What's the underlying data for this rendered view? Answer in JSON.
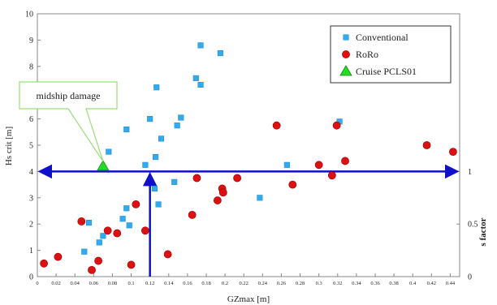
{
  "chart_data": {
    "type": "scatter",
    "xlabel": "GZmax [m]",
    "ylabel": "Hs crit [m]",
    "y2label": "s factor",
    "xlim": [
      0,
      0.45
    ],
    "ylim": [
      0,
      10
    ],
    "x_ticks": [
      "0",
      "0.02",
      "0.04",
      "0.06",
      "0.08",
      "0.1",
      "0.12",
      "0.14",
      "0.16",
      "0.18",
      "0.2",
      "0.22",
      "0.24",
      "0.26",
      "0.28",
      "0.3",
      "0.32",
      "0.34",
      "0.36",
      "0.38",
      "0.4",
      "0.42",
      "0.44"
    ],
    "y_ticks": [
      "0",
      "1",
      "2",
      "3",
      "4",
      "5",
      "6",
      "7",
      "8",
      "9",
      "10"
    ],
    "y2_ticks": [
      {
        "label": "0",
        "hs": 0
      },
      {
        "label": "0.5",
        "hs": 2
      },
      {
        "label": "1",
        "hs": 4
      }
    ],
    "grid": false,
    "legend_position": "top-right",
    "series": [
      {
        "name": "Conventional",
        "marker": "square",
        "color": "#33aaee",
        "points": [
          {
            "x": 0.05,
            "y": 0.95
          },
          {
            "x": 0.055,
            "y": 2.05
          },
          {
            "x": 0.066,
            "y": 1.3
          },
          {
            "x": 0.07,
            "y": 1.55
          },
          {
            "x": 0.076,
            "y": 4.75
          },
          {
            "x": 0.091,
            "y": 2.2
          },
          {
            "x": 0.095,
            "y": 2.6
          },
          {
            "x": 0.098,
            "y": 1.95
          },
          {
            "x": 0.095,
            "y": 5.6
          },
          {
            "x": 0.115,
            "y": 4.25
          },
          {
            "x": 0.12,
            "y": 6.0
          },
          {
            "x": 0.125,
            "y": 3.35
          },
          {
            "x": 0.126,
            "y": 4.55
          },
          {
            "x": 0.127,
            "y": 7.2
          },
          {
            "x": 0.129,
            "y": 2.75
          },
          {
            "x": 0.132,
            "y": 5.25
          },
          {
            "x": 0.146,
            "y": 3.6
          },
          {
            "x": 0.149,
            "y": 5.75
          },
          {
            "x": 0.153,
            "y": 6.05
          },
          {
            "x": 0.169,
            "y": 7.55
          },
          {
            "x": 0.174,
            "y": 7.3
          },
          {
            "x": 0.174,
            "y": 8.8
          },
          {
            "x": 0.195,
            "y": 8.5
          },
          {
            "x": 0.237,
            "y": 3.0
          },
          {
            "x": 0.266,
            "y": 4.25
          },
          {
            "x": 0.322,
            "y": 5.9
          }
        ]
      },
      {
        "name": "RoRo",
        "marker": "circle",
        "color": "#dd1111",
        "points": [
          {
            "x": 0.007,
            "y": 0.5
          },
          {
            "x": 0.022,
            "y": 0.75
          },
          {
            "x": 0.047,
            "y": 2.1
          },
          {
            "x": 0.058,
            "y": 0.25
          },
          {
            "x": 0.065,
            "y": 0.6
          },
          {
            "x": 0.075,
            "y": 1.75
          },
          {
            "x": 0.085,
            "y": 1.65
          },
          {
            "x": 0.1,
            "y": 0.45
          },
          {
            "x": 0.105,
            "y": 2.75
          },
          {
            "x": 0.115,
            "y": 1.75
          },
          {
            "x": 0.139,
            "y": 0.85
          },
          {
            "x": 0.165,
            "y": 2.35
          },
          {
            "x": 0.17,
            "y": 3.75
          },
          {
            "x": 0.192,
            "y": 2.9
          },
          {
            "x": 0.197,
            "y": 3.35
          },
          {
            "x": 0.198,
            "y": 3.2
          },
          {
            "x": 0.213,
            "y": 3.75
          },
          {
            "x": 0.255,
            "y": 5.75
          },
          {
            "x": 0.272,
            "y": 3.5
          },
          {
            "x": 0.3,
            "y": 4.25
          },
          {
            "x": 0.314,
            "y": 3.85
          },
          {
            "x": 0.319,
            "y": 5.75
          },
          {
            "x": 0.328,
            "y": 4.4
          },
          {
            "x": 0.415,
            "y": 5.0
          },
          {
            "x": 0.443,
            "y": 4.75
          }
        ]
      },
      {
        "name": "Cruise PCLS01",
        "marker": "triangle",
        "color": "#22dd22",
        "points": [
          {
            "x": 0.07,
            "y": 4.2
          }
        ]
      }
    ],
    "reference_lines": [
      {
        "orientation": "horizontal",
        "y": 4.0,
        "color": "#1010cc",
        "double_arrow": true
      },
      {
        "orientation": "vertical",
        "x": 0.12,
        "y_from": 0,
        "y_to": 4.0,
        "color": "#1010cc",
        "arrow_end": true
      }
    ],
    "annotations": [
      {
        "text": "midship damage",
        "target_x": 0.07,
        "target_y": 4.2
      }
    ]
  }
}
